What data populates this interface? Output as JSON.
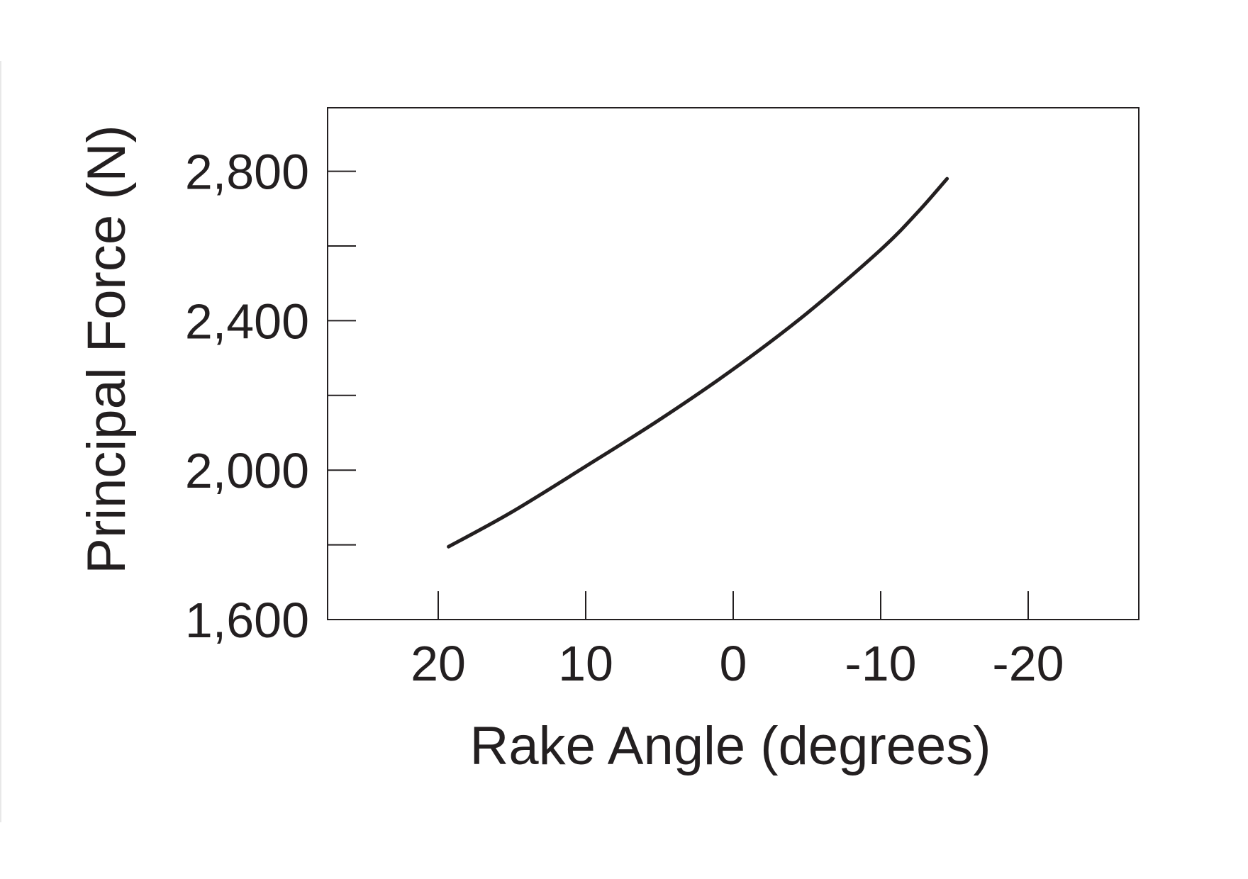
{
  "chart_data": {
    "type": "line",
    "title": "",
    "xlabel": "Rake Angle (degrees)",
    "ylabel": "Principal Force (N)",
    "xlim": [
      27.5,
      -27.5
    ],
    "ylim": [
      1600,
      2970
    ],
    "x_reversed": true,
    "x_ticks": [
      20,
      10,
      0,
      -10,
      -20
    ],
    "x_tick_labels": [
      "20",
      "10",
      "0",
      "-10",
      "-20"
    ],
    "y_major_ticks": [
      1600,
      2000,
      2400,
      2800
    ],
    "y_tick_labels": [
      "1,600",
      "2,000",
      "2,400",
      "2,800"
    ],
    "y_minor_ticks": [
      1800,
      2200,
      2600
    ],
    "grid": false,
    "legend": "none",
    "line_color": "#231f20",
    "series": [
      {
        "x": [
          19.3,
          15,
          10,
          5,
          0,
          -5,
          -10,
          -12.5,
          -14.5
        ],
        "y": [
          1795,
          1888,
          2010,
          2135,
          2270,
          2420,
          2590,
          2690,
          2780
        ]
      }
    ]
  }
}
